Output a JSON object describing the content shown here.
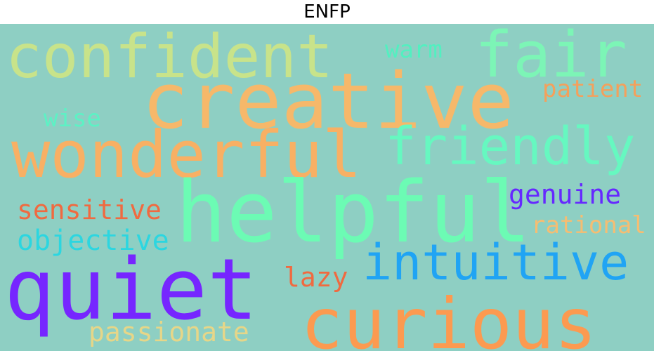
{
  "title": "ENFP",
  "background_color": "#8ecfc3",
  "words": [
    {
      "text": "confident",
      "color": "#c8e38a"
    },
    {
      "text": "fair",
      "color": "#7cf5b6"
    },
    {
      "text": "warm",
      "color": "#52f0c0"
    },
    {
      "text": "creative",
      "color": "#f6b86a"
    },
    {
      "text": "patient",
      "color": "#f4a05c"
    },
    {
      "text": "wise",
      "color": "#5cf2c4"
    },
    {
      "text": "wonderful",
      "color": "#f8b064"
    },
    {
      "text": "friendly",
      "color": "#66f8c0"
    },
    {
      "text": "helpful",
      "color": "#6cfbb4"
    },
    {
      "text": "genuine",
      "color": "#6628ff"
    },
    {
      "text": "sensitive",
      "color": "#f06a40"
    },
    {
      "text": "rational",
      "color": "#f6bd72"
    },
    {
      "text": "objective",
      "color": "#2cd6e0"
    },
    {
      "text": "intuitive",
      "color": "#20a4f4"
    },
    {
      "text": "lazy",
      "color": "#f06a40"
    },
    {
      "text": "quiet",
      "color": "#7626ff"
    },
    {
      "text": "curious",
      "color": "#fc9a50"
    },
    {
      "text": "passionate",
      "color": "#e6d688"
    }
  ]
}
